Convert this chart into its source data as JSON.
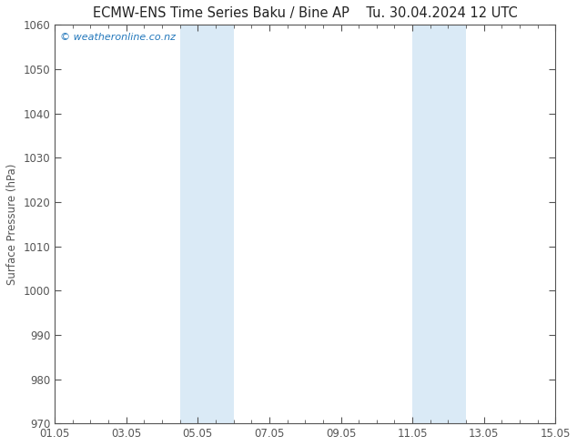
{
  "title_left": "ECMW-ENS Time Series Baku / Bine AP",
  "title_right": "Tu. 30.04.2024 12 UTC",
  "ylabel": "Surface Pressure (hPa)",
  "xlabel": "",
  "ylim": [
    970,
    1060
  ],
  "yticks": [
    970,
    980,
    990,
    1000,
    1010,
    1020,
    1030,
    1040,
    1050,
    1060
  ],
  "xtick_labels": [
    "01.05",
    "03.05",
    "05.05",
    "07.05",
    "09.05",
    "11.05",
    "13.05",
    "15.05"
  ],
  "xtick_positions": [
    0,
    2,
    4,
    6,
    8,
    10,
    12,
    14
  ],
  "shade_bands": [
    {
      "x_start": 3.5,
      "x_end": 5.0,
      "color": "#daeaf6"
    },
    {
      "x_start": 10.0,
      "x_end": 11.5,
      "color": "#daeaf6"
    }
  ],
  "x_min": 0,
  "x_max": 14,
  "watermark_text": "© weatheronline.co.nz",
  "watermark_color": "#2277bb",
  "background_color": "#ffffff",
  "plot_bg_color": "#ffffff",
  "axis_color": "#555555",
  "title_fontsize": 10.5,
  "tick_fontsize": 8.5,
  "ylabel_fontsize": 8.5,
  "minor_xtick_positions": [
    0.5,
    1.0,
    1.5,
    2.0,
    2.5,
    3.0,
    3.5,
    4.0,
    4.5,
    5.0,
    5.5,
    6.0,
    6.5,
    7.0,
    7.5,
    8.0,
    8.5,
    9.0,
    9.5,
    10.0,
    10.5,
    11.0,
    11.5,
    12.0,
    12.5,
    13.0,
    13.5,
    14.0
  ]
}
